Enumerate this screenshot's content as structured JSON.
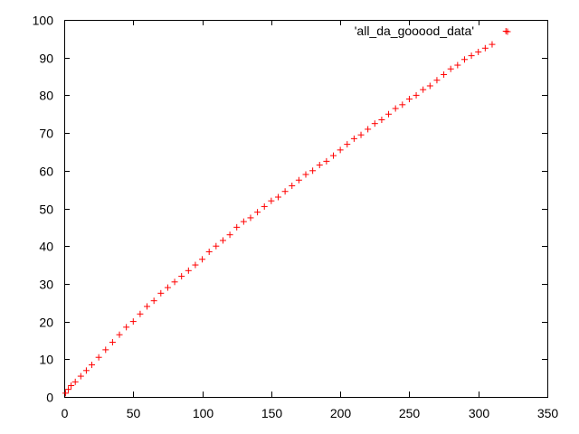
{
  "chart_data": {
    "type": "scatter",
    "title": "",
    "xlabel": "",
    "ylabel": "",
    "xlim": [
      0,
      350
    ],
    "ylim": [
      0,
      100
    ],
    "xticks": [
      0,
      50,
      100,
      150,
      200,
      250,
      300,
      350
    ],
    "yticks": [
      0,
      10,
      20,
      30,
      40,
      50,
      60,
      70,
      80,
      90,
      100
    ],
    "xtick_labels": [
      "0",
      "50",
      "100",
      "150",
      "200",
      "250",
      "300",
      "350"
    ],
    "ytick_labels": [
      "0",
      "10",
      "20",
      "30",
      "40",
      "50",
      "60",
      "70",
      "80",
      "90",
      "100"
    ],
    "grid": false,
    "legend_position": "top-right",
    "marker": "+",
    "colors": {
      "series": "#ff0000",
      "axis": "#000000",
      "background": "#ffffff"
    },
    "series": [
      {
        "name": "'all_da_gooood_data'",
        "x": [
          1,
          3,
          5,
          8,
          12,
          16,
          20,
          25,
          30,
          35,
          40,
          45,
          50,
          55,
          60,
          65,
          70,
          75,
          80,
          85,
          90,
          95,
          100,
          105,
          110,
          115,
          120,
          125,
          130,
          135,
          140,
          145,
          150,
          155,
          160,
          165,
          170,
          175,
          180,
          185,
          190,
          195,
          200,
          205,
          210,
          215,
          220,
          225,
          230,
          235,
          240,
          245,
          250,
          255,
          260,
          265,
          270,
          275,
          280,
          285,
          290,
          295,
          300,
          305,
          310,
          320
        ],
        "y": [
          1,
          2,
          3,
          4,
          5.5,
          7,
          8.5,
          10.5,
          12.5,
          14.5,
          16.5,
          18.5,
          20,
          22,
          24,
          25.5,
          27.5,
          29,
          30.5,
          32,
          33.5,
          35,
          36.5,
          38.5,
          40,
          41.5,
          43,
          45,
          46.5,
          47.5,
          49,
          50.5,
          52,
          53,
          54.5,
          56,
          57.5,
          59,
          60,
          61.5,
          62.5,
          64,
          65.5,
          67,
          68.5,
          69.5,
          71,
          72.5,
          73.5,
          75,
          76.5,
          77.5,
          79,
          80,
          81.5,
          82.5,
          84,
          85.5,
          87,
          88,
          89.5,
          90.5,
          91.5,
          92.5,
          93.5,
          97
        ]
      }
    ]
  }
}
